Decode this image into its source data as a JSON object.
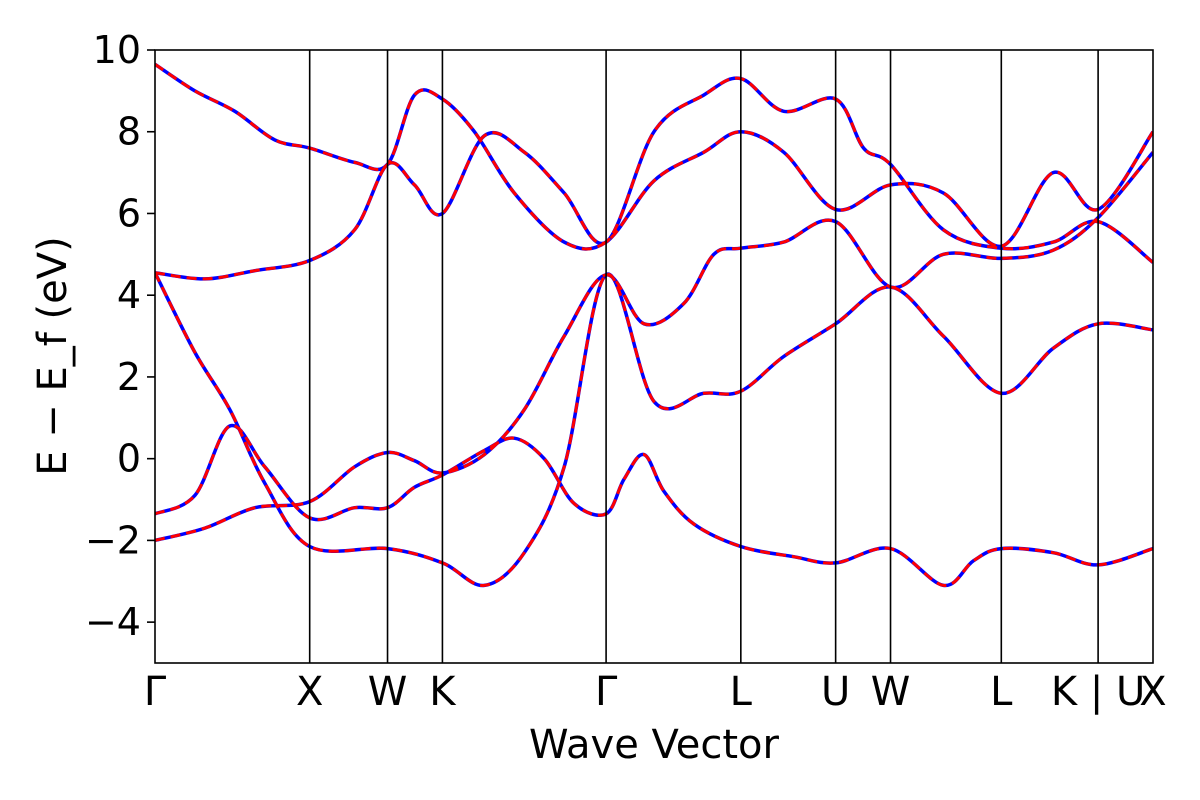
{
  "chart_data": {
    "type": "line",
    "title": "",
    "xlabel": "Wave Vector",
    "ylabel": "E − E_f (eV)",
    "ylim": [
      -5,
      10
    ],
    "yticks": [
      -4,
      -2,
      0,
      2,
      4,
      6,
      8,
      10
    ],
    "ytick_labels": [
      "−4",
      "−2",
      "0",
      "2",
      "4",
      "6",
      "8",
      "10"
    ],
    "grid": false,
    "xlim": [
      0,
      1
    ],
    "kpoints": [
      {
        "label": "Γ",
        "x": 0.0
      },
      {
        "label": "X",
        "x": 0.155
      },
      {
        "label": "W",
        "x": 0.233
      },
      {
        "label": "K",
        "x": 0.288
      },
      {
        "label": "Γ",
        "x": 0.452
      },
      {
        "label": "L",
        "x": 0.587
      },
      {
        "label": "U",
        "x": 0.682
      },
      {
        "label": "W",
        "x": 0.737
      },
      {
        "label": "L",
        "x": 0.848
      },
      {
        "label": "K | U",
        "x": 0.945
      },
      {
        "label": "X",
        "x": 1.0
      }
    ],
    "series": [
      {
        "color": "#0000ff",
        "style": "solid",
        "bands": [
          [
            [
              0,
              4.55
            ],
            [
              0.04,
              2.6
            ],
            [
              0.075,
              1.2
            ],
            [
              0.11,
              -0.6
            ],
            [
              0.155,
              -2.15
            ],
            [
              0.233,
              -2.2
            ],
            [
              0.288,
              -2.55
            ],
            [
              0.33,
              -3.1
            ],
            [
              0.37,
              -2.3
            ],
            [
              0.41,
              -0.2
            ],
            [
              0.452,
              4.5
            ],
            [
              0.5,
              1.4
            ],
            [
              0.55,
              1.6
            ],
            [
              0.587,
              1.65
            ],
            [
              0.63,
              2.5
            ],
            [
              0.682,
              3.3
            ],
            [
              0.737,
              4.2
            ],
            [
              0.79,
              3.0
            ],
            [
              0.848,
              1.6
            ],
            [
              0.9,
              2.7
            ],
            [
              0.945,
              3.3
            ],
            [
              1.0,
              3.15
            ]
          ],
          [
            [
              0,
              -1.35
            ],
            [
              0.04,
              -0.9
            ],
            [
              0.075,
              0.8
            ],
            [
              0.11,
              -0.2
            ],
            [
              0.155,
              -1.45
            ],
            [
              0.2,
              -1.2
            ],
            [
              0.233,
              -1.2
            ],
            [
              0.26,
              -0.7
            ],
            [
              0.288,
              -0.4
            ],
            [
              0.33,
              0.2
            ],
            [
              0.36,
              0.5
            ],
            [
              0.39,
              0.0
            ],
            [
              0.42,
              -1.1
            ],
            [
              0.452,
              -1.35
            ],
            [
              0.47,
              -0.5
            ],
            [
              0.49,
              0.1
            ],
            [
              0.51,
              -0.8
            ],
            [
              0.54,
              -1.6
            ],
            [
              0.587,
              -2.15
            ],
            [
              0.64,
              -2.4
            ],
            [
              0.682,
              -2.55
            ],
            [
              0.737,
              -2.2
            ],
            [
              0.79,
              -3.1
            ],
            [
              0.82,
              -2.5
            ],
            [
              0.848,
              -2.2
            ],
            [
              0.9,
              -2.3
            ],
            [
              0.945,
              -2.6
            ],
            [
              1.0,
              -2.2
            ]
          ],
          [
            [
              0,
              4.55
            ],
            [
              0.05,
              4.4
            ],
            [
              0.1,
              4.6
            ],
            [
              0.155,
              4.85
            ],
            [
              0.2,
              5.6
            ],
            [
              0.233,
              7.2
            ],
            [
              0.26,
              6.7
            ],
            [
              0.288,
              6.0
            ],
            [
              0.33,
              7.9
            ],
            [
              0.37,
              7.5
            ],
            [
              0.41,
              6.5
            ],
            [
              0.452,
              5.3
            ],
            [
              0.5,
              8.0
            ],
            [
              0.55,
              8.9
            ],
            [
              0.587,
              9.3
            ],
            [
              0.63,
              8.5
            ],
            [
              0.682,
              8.8
            ],
            [
              0.71,
              7.6
            ],
            [
              0.737,
              7.2
            ],
            [
              0.79,
              5.6
            ],
            [
              0.848,
              5.15
            ],
            [
              0.9,
              5.3
            ],
            [
              0.945,
              5.8
            ],
            [
              1.0,
              4.8
            ]
          ],
          [
            [
              0,
              -2.0
            ],
            [
              0.05,
              -1.7
            ],
            [
              0.1,
              -1.2
            ],
            [
              0.155,
              -1.05
            ],
            [
              0.2,
              -0.2
            ],
            [
              0.233,
              0.15
            ],
            [
              0.26,
              -0.05
            ],
            [
              0.288,
              -0.35
            ],
            [
              0.33,
              0.1
            ],
            [
              0.37,
              1.2
            ],
            [
              0.41,
              3.0
            ],
            [
              0.452,
              4.5
            ],
            [
              0.49,
              3.3
            ],
            [
              0.53,
              3.8
            ],
            [
              0.56,
              5.0
            ],
            [
              0.587,
              5.15
            ],
            [
              0.63,
              5.3
            ],
            [
              0.682,
              5.8
            ],
            [
              0.737,
              4.2
            ],
            [
              0.79,
              5.0
            ],
            [
              0.848,
              4.9
            ],
            [
              0.9,
              5.1
            ],
            [
              0.945,
              5.9
            ],
            [
              1.0,
              7.5
            ]
          ],
          [
            [
              0,
              9.65
            ],
            [
              0.04,
              9.0
            ],
            [
              0.08,
              8.5
            ],
            [
              0.12,
              7.8
            ],
            [
              0.155,
              7.6
            ],
            [
              0.2,
              7.25
            ],
            [
              0.233,
              7.2
            ],
            [
              0.26,
              8.9
            ],
            [
              0.288,
              8.8
            ],
            [
              0.32,
              8.0
            ],
            [
              0.36,
              6.5
            ],
            [
              0.41,
              5.3
            ],
            [
              0.452,
              5.3
            ],
            [
              0.5,
              6.8
            ],
            [
              0.55,
              7.5
            ],
            [
              0.587,
              8.0
            ],
            [
              0.63,
              7.5
            ],
            [
              0.682,
              6.1
            ],
            [
              0.737,
              6.7
            ],
            [
              0.79,
              6.5
            ],
            [
              0.848,
              5.2
            ],
            [
              0.9,
              7.0
            ],
            [
              0.945,
              6.1
            ],
            [
              1.0,
              8.0
            ]
          ]
        ]
      },
      {
        "color": "#ff0000",
        "style": "dashed",
        "bands": [
          [
            [
              0,
              4.55
            ],
            [
              0.04,
              2.6
            ],
            [
              0.075,
              1.2
            ],
            [
              0.11,
              -0.6
            ],
            [
              0.155,
              -2.15
            ],
            [
              0.233,
              -2.2
            ],
            [
              0.288,
              -2.55
            ],
            [
              0.33,
              -3.1
            ],
            [
              0.37,
              -2.3
            ],
            [
              0.41,
              -0.2
            ],
            [
              0.452,
              4.5
            ],
            [
              0.5,
              1.4
            ],
            [
              0.55,
              1.6
            ],
            [
              0.587,
              1.65
            ],
            [
              0.63,
              2.5
            ],
            [
              0.682,
              3.3
            ],
            [
              0.737,
              4.2
            ],
            [
              0.79,
              3.0
            ],
            [
              0.848,
              1.6
            ],
            [
              0.9,
              2.7
            ],
            [
              0.945,
              3.3
            ],
            [
              1.0,
              3.15
            ]
          ],
          [
            [
              0,
              -1.35
            ],
            [
              0.04,
              -0.9
            ],
            [
              0.075,
              0.8
            ],
            [
              0.11,
              -0.2
            ],
            [
              0.155,
              -1.45
            ],
            [
              0.2,
              -1.2
            ],
            [
              0.233,
              -1.2
            ],
            [
              0.26,
              -0.7
            ],
            [
              0.288,
              -0.4
            ],
            [
              0.33,
              0.2
            ],
            [
              0.36,
              0.5
            ],
            [
              0.39,
              0.0
            ],
            [
              0.42,
              -1.1
            ],
            [
              0.452,
              -1.35
            ],
            [
              0.47,
              -0.5
            ],
            [
              0.49,
              0.1
            ],
            [
              0.51,
              -0.8
            ],
            [
              0.54,
              -1.6
            ],
            [
              0.587,
              -2.15
            ],
            [
              0.64,
              -2.4
            ],
            [
              0.682,
              -2.55
            ],
            [
              0.737,
              -2.2
            ],
            [
              0.79,
              -3.1
            ],
            [
              0.82,
              -2.5
            ],
            [
              0.848,
              -2.2
            ],
            [
              0.9,
              -2.3
            ],
            [
              0.945,
              -2.6
            ],
            [
              1.0,
              -2.2
            ]
          ],
          [
            [
              0,
              4.55
            ],
            [
              0.05,
              4.4
            ],
            [
              0.1,
              4.6
            ],
            [
              0.155,
              4.85
            ],
            [
              0.2,
              5.6
            ],
            [
              0.233,
              7.2
            ],
            [
              0.26,
              6.7
            ],
            [
              0.288,
              6.0
            ],
            [
              0.33,
              7.9
            ],
            [
              0.37,
              7.5
            ],
            [
              0.41,
              6.5
            ],
            [
              0.452,
              5.3
            ],
            [
              0.5,
              8.0
            ],
            [
              0.55,
              8.9
            ],
            [
              0.587,
              9.3
            ],
            [
              0.63,
              8.5
            ],
            [
              0.682,
              8.8
            ],
            [
              0.71,
              7.6
            ],
            [
              0.737,
              7.2
            ],
            [
              0.79,
              5.6
            ],
            [
              0.848,
              5.15
            ],
            [
              0.9,
              5.3
            ],
            [
              0.945,
              5.8
            ],
            [
              1.0,
              4.8
            ]
          ],
          [
            [
              0,
              -2.0
            ],
            [
              0.05,
              -1.7
            ],
            [
              0.1,
              -1.2
            ],
            [
              0.155,
              -1.05
            ],
            [
              0.2,
              -0.2
            ],
            [
              0.233,
              0.15
            ],
            [
              0.26,
              -0.05
            ],
            [
              0.288,
              -0.35
            ],
            [
              0.33,
              0.1
            ],
            [
              0.37,
              1.2
            ],
            [
              0.41,
              3.0
            ],
            [
              0.452,
              4.5
            ],
            [
              0.49,
              3.3
            ],
            [
              0.53,
              3.8
            ],
            [
              0.56,
              5.0
            ],
            [
              0.587,
              5.15
            ],
            [
              0.63,
              5.3
            ],
            [
              0.682,
              5.8
            ],
            [
              0.737,
              4.2
            ],
            [
              0.79,
              5.0
            ],
            [
              0.848,
              4.9
            ],
            [
              0.9,
              5.1
            ],
            [
              0.945,
              5.9
            ],
            [
              1.0,
              7.5
            ]
          ],
          [
            [
              0,
              9.65
            ],
            [
              0.04,
              9.0
            ],
            [
              0.08,
              8.5
            ],
            [
              0.12,
              7.8
            ],
            [
              0.155,
              7.6
            ],
            [
              0.2,
              7.25
            ],
            [
              0.233,
              7.2
            ],
            [
              0.26,
              8.9
            ],
            [
              0.288,
              8.8
            ],
            [
              0.32,
              8.0
            ],
            [
              0.36,
              6.5
            ],
            [
              0.41,
              5.3
            ],
            [
              0.452,
              5.3
            ],
            [
              0.5,
              6.8
            ],
            [
              0.55,
              7.5
            ],
            [
              0.587,
              8.0
            ],
            [
              0.63,
              7.5
            ],
            [
              0.682,
              6.1
            ],
            [
              0.737,
              6.7
            ],
            [
              0.79,
              6.5
            ],
            [
              0.848,
              5.2
            ],
            [
              0.9,
              7.0
            ],
            [
              0.945,
              6.1
            ],
            [
              1.0,
              8.0
            ]
          ]
        ]
      }
    ]
  }
}
